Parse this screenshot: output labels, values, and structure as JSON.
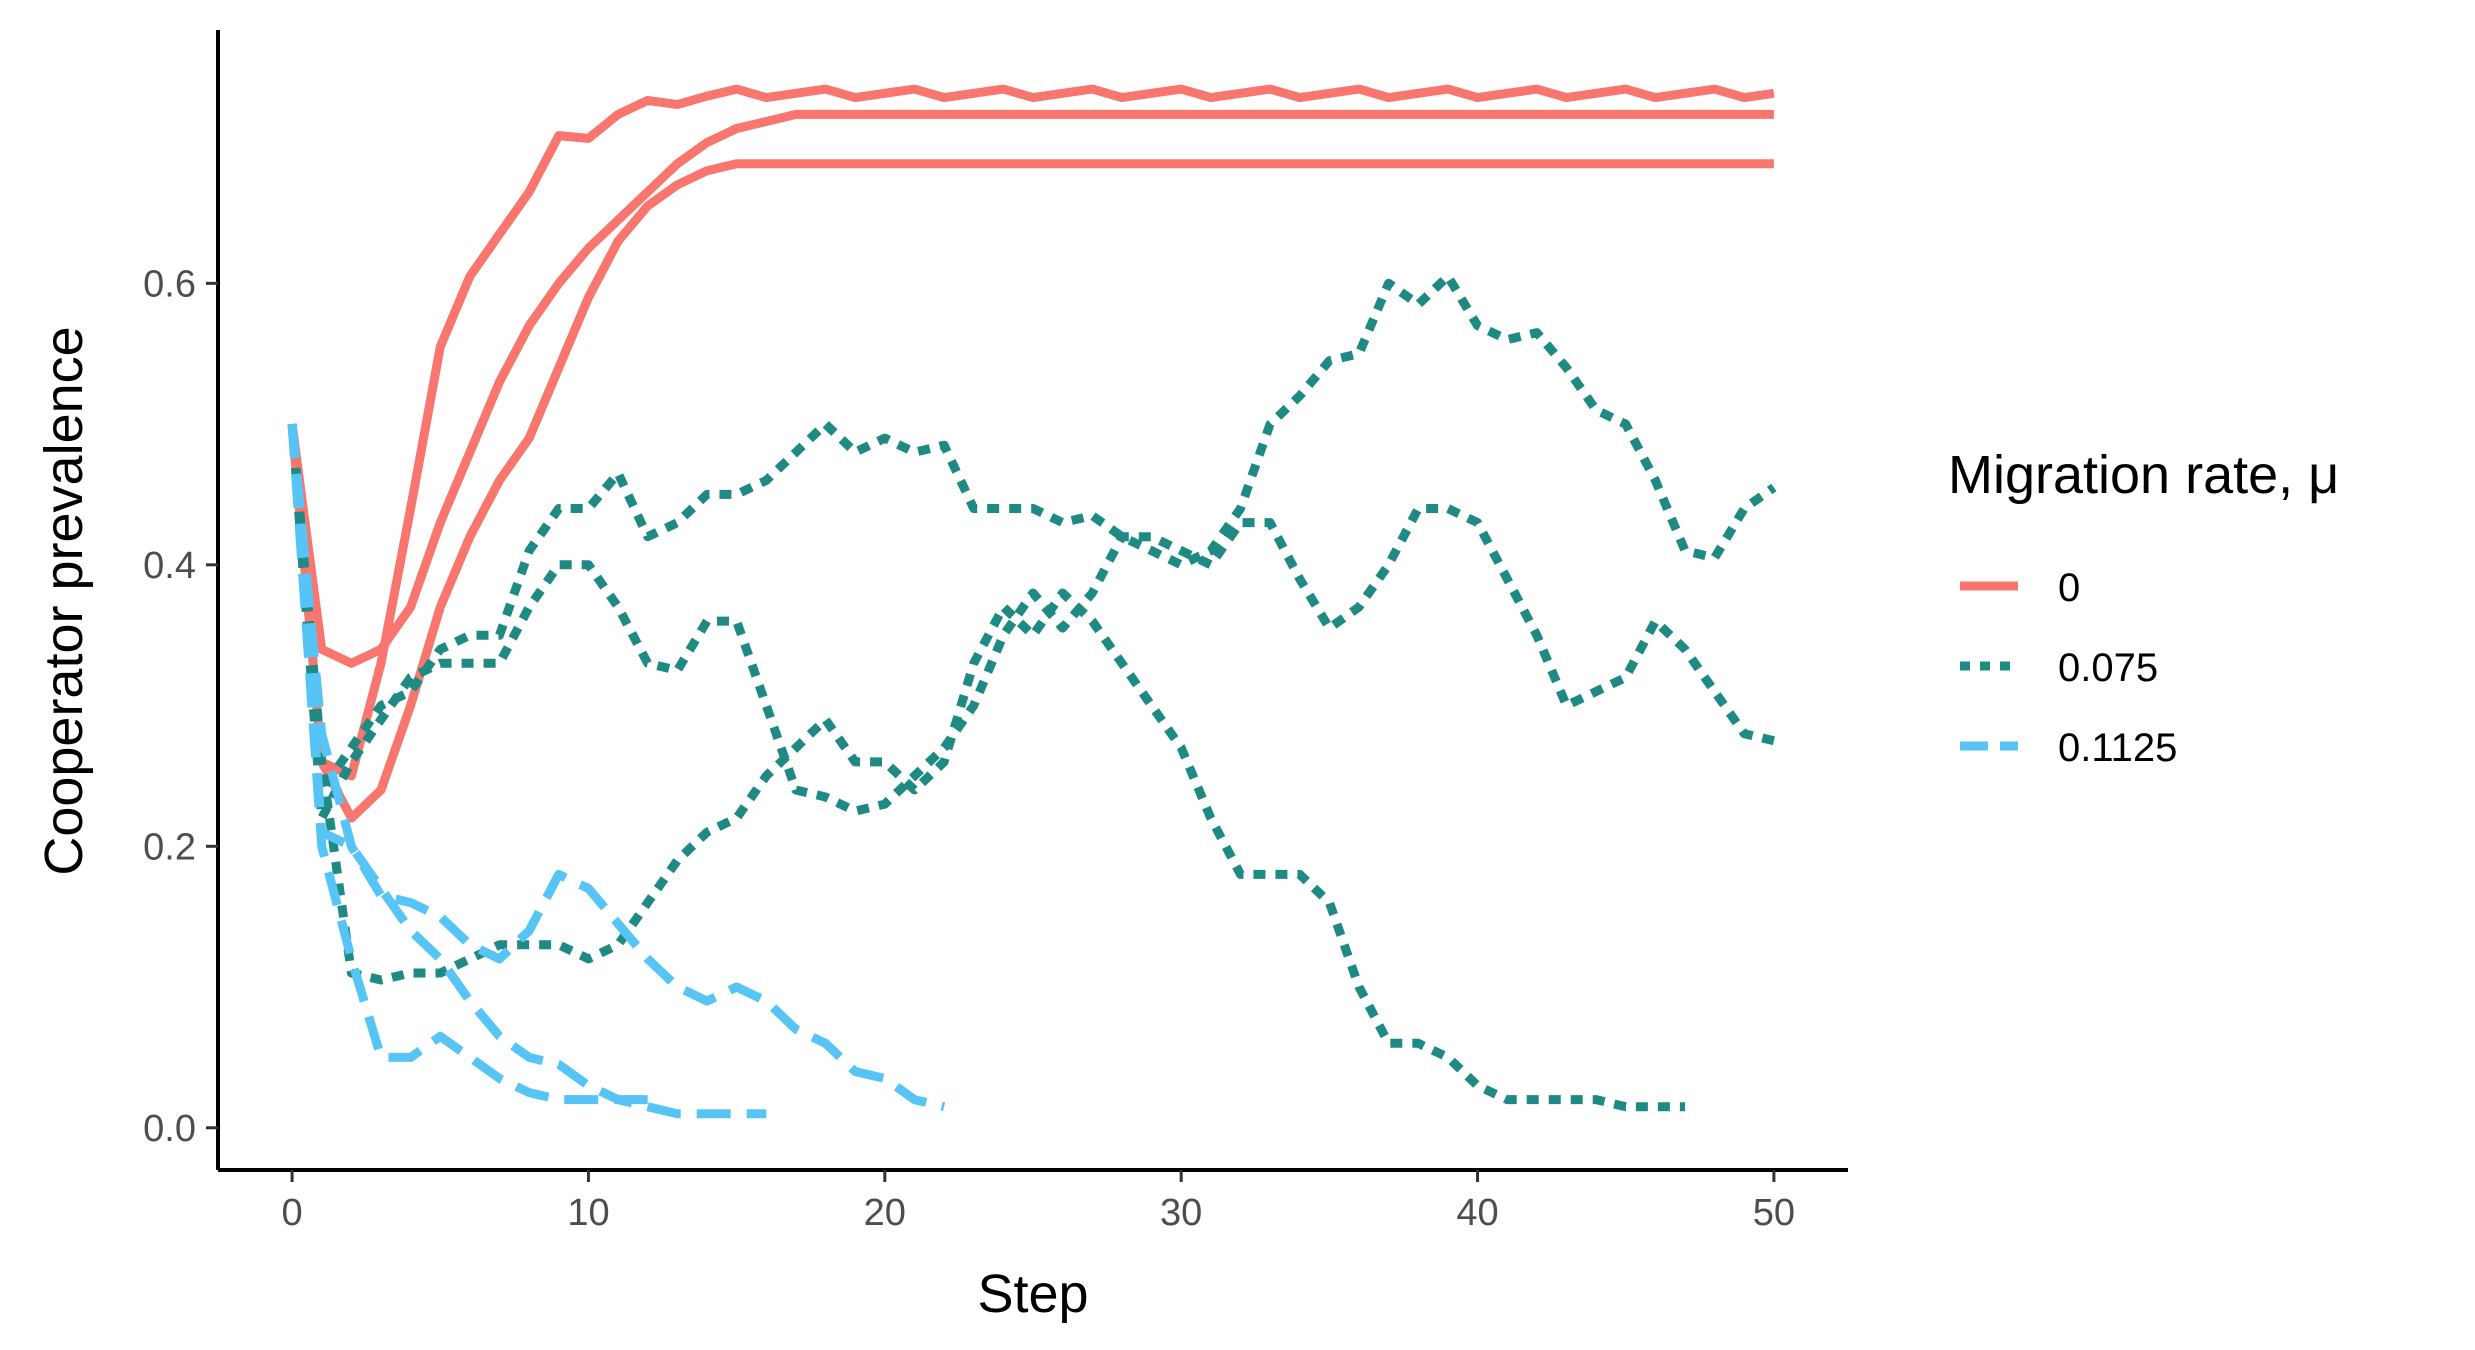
{
  "chart_data": {
    "type": "line",
    "title": "",
    "xlabel": "Step",
    "ylabel": "Cooperator prevalence",
    "xlim": [
      -2.5,
      52.5
    ],
    "ylim": [
      -0.03,
      0.78
    ],
    "x_ticks": [
      0,
      10,
      20,
      30,
      40,
      50
    ],
    "y_ticks": [
      0.0,
      0.2,
      0.4,
      0.6
    ],
    "x_tick_labels": [
      "0",
      "10",
      "20",
      "30",
      "40",
      "50"
    ],
    "y_tick_labels": [
      "0.0",
      "0.2",
      "0.4",
      "0.6"
    ],
    "grid": false,
    "legend": {
      "title": "Migration rate, μ",
      "position": "right",
      "entries": [
        {
          "label": "0",
          "color": "#F8766D",
          "dash": "solid"
        },
        {
          "label": "0.075",
          "color": "#1F8A83",
          "dash": "dotted"
        },
        {
          "label": "0.1125",
          "color": "#56C5F5",
          "dash": "dashed"
        }
      ]
    },
    "series": [
      {
        "group": "0",
        "color": "#F8766D",
        "dash": "solid",
        "x": [
          0,
          1,
          2,
          3,
          4,
          5,
          6,
          7,
          8,
          9,
          10,
          11,
          12,
          13,
          14,
          15,
          16,
          17,
          18,
          19,
          20,
          21,
          22,
          23,
          24,
          25,
          26,
          27,
          28,
          29,
          30,
          31,
          32,
          33,
          34,
          35,
          36,
          37,
          38,
          39,
          40,
          41,
          42,
          43,
          44,
          45,
          46,
          47,
          48,
          49,
          50
        ],
        "y": [
          0.5,
          0.34,
          0.33,
          0.34,
          0.37,
          0.43,
          0.48,
          0.53,
          0.57,
          0.6,
          0.625,
          0.645,
          0.665,
          0.685,
          0.7,
          0.71,
          0.715,
          0.72,
          0.72,
          0.72,
          0.72,
          0.72,
          0.72,
          0.72,
          0.72,
          0.72,
          0.72,
          0.72,
          0.72,
          0.72,
          0.72,
          0.72,
          0.72,
          0.72,
          0.72,
          0.72,
          0.72,
          0.72,
          0.72,
          0.72,
          0.72,
          0.72,
          0.72,
          0.72,
          0.72,
          0.72,
          0.72,
          0.72,
          0.72,
          0.72,
          0.72
        ]
      },
      {
        "group": "0",
        "color": "#F8766D",
        "dash": "solid",
        "x": [
          0,
          1,
          2,
          3,
          4,
          5,
          6,
          7,
          8,
          9,
          10,
          11,
          12,
          13,
          14,
          15,
          16,
          17,
          18,
          19,
          20,
          21,
          22,
          23,
          24,
          25,
          26,
          27,
          28,
          29,
          30,
          31,
          32,
          33,
          34,
          35,
          36,
          37,
          38,
          39,
          40,
          41,
          42,
          43,
          44,
          45,
          46,
          47,
          48,
          49,
          50
        ],
        "y": [
          0.5,
          0.26,
          0.22,
          0.24,
          0.3,
          0.37,
          0.42,
          0.46,
          0.49,
          0.54,
          0.59,
          0.63,
          0.655,
          0.67,
          0.68,
          0.685,
          0.685,
          0.685,
          0.685,
          0.685,
          0.685,
          0.685,
          0.685,
          0.685,
          0.685,
          0.685,
          0.685,
          0.685,
          0.685,
          0.685,
          0.685,
          0.685,
          0.685,
          0.685,
          0.685,
          0.685,
          0.685,
          0.685,
          0.685,
          0.685,
          0.685,
          0.685,
          0.685,
          0.685,
          0.685,
          0.685,
          0.685,
          0.685,
          0.685,
          0.685,
          0.685
        ]
      },
      {
        "group": "0",
        "color": "#F8766D",
        "dash": "solid",
        "x": [
          0,
          1,
          2,
          3,
          4,
          5,
          6,
          7,
          8,
          9,
          10,
          11,
          12,
          13,
          14,
          15,
          16,
          17,
          18,
          19,
          20,
          21,
          22,
          23,
          24,
          25,
          26,
          27,
          28,
          29,
          30,
          31,
          32,
          33,
          34,
          35,
          36,
          37,
          38,
          39,
          40,
          41,
          42,
          43,
          44,
          45,
          46,
          47,
          48,
          49,
          50
        ],
        "y": [
          0.5,
          0.26,
          0.25,
          0.33,
          0.44,
          0.555,
          0.605,
          0.635,
          0.665,
          0.705,
          0.703,
          0.72,
          0.73,
          0.727,
          0.733,
          0.738,
          0.732,
          0.735,
          0.738,
          0.732,
          0.735,
          0.738,
          0.732,
          0.735,
          0.738,
          0.732,
          0.735,
          0.738,
          0.732,
          0.735,
          0.738,
          0.732,
          0.735,
          0.738,
          0.732,
          0.735,
          0.738,
          0.732,
          0.735,
          0.738,
          0.732,
          0.735,
          0.738,
          0.732,
          0.735,
          0.738,
          0.732,
          0.735,
          0.738,
          0.732,
          0.735
        ]
      },
      {
        "group": "0.075",
        "color": "#1F8A83",
        "dash": "dotted",
        "x": [
          0,
          1,
          2,
          3,
          4,
          5,
          6,
          7,
          8,
          9,
          10,
          11,
          12,
          13,
          14,
          15,
          16,
          17,
          18,
          19,
          20,
          21,
          22,
          23,
          24,
          25,
          26,
          27,
          28,
          29,
          30,
          31,
          32,
          33,
          34,
          35,
          36,
          37,
          38,
          39,
          40,
          41,
          42,
          43,
          44,
          45,
          46,
          47,
          48,
          49,
          50
        ],
        "y": [
          0.5,
          0.24,
          0.27,
          0.3,
          0.31,
          0.34,
          0.35,
          0.35,
          0.41,
          0.44,
          0.44,
          0.465,
          0.42,
          0.43,
          0.45,
          0.45,
          0.46,
          0.48,
          0.5,
          0.48,
          0.49,
          0.48,
          0.485,
          0.44,
          0.44,
          0.44,
          0.43,
          0.435,
          0.42,
          0.41,
          0.4,
          0.41,
          0.44,
          0.5,
          0.52,
          0.545,
          0.55,
          0.6,
          0.585,
          0.605,
          0.57,
          0.56,
          0.565,
          0.54,
          0.51,
          0.5,
          0.46,
          0.41,
          0.405,
          0.44,
          0.455
        ]
      },
      {
        "group": "0.075",
        "color": "#1F8A83",
        "dash": "dotted",
        "x": [
          0,
          1,
          2,
          3,
          4,
          5,
          6,
          7,
          8,
          9,
          10,
          11,
          12,
          13,
          14,
          15,
          16,
          17,
          18,
          19,
          20,
          21,
          22,
          23,
          24,
          25,
          26,
          27,
          28,
          29,
          30,
          31,
          32,
          33,
          34,
          35,
          36,
          37,
          38,
          39,
          40,
          41,
          42,
          43,
          44,
          45,
          46,
          47,
          48,
          49,
          50
        ],
        "y": [
          0.5,
          0.22,
          0.26,
          0.29,
          0.32,
          0.33,
          0.33,
          0.33,
          0.37,
          0.4,
          0.4,
          0.37,
          0.33,
          0.325,
          0.36,
          0.36,
          0.3,
          0.24,
          0.235,
          0.225,
          0.23,
          0.25,
          0.27,
          0.3,
          0.35,
          0.38,
          0.355,
          0.38,
          0.42,
          0.42,
          0.41,
          0.4,
          0.43,
          0.43,
          0.39,
          0.355,
          0.37,
          0.4,
          0.44,
          0.44,
          0.43,
          0.39,
          0.35,
          0.3,
          0.31,
          0.32,
          0.36,
          0.34,
          0.31,
          0.28,
          0.275
        ]
      },
      {
        "group": "0.075",
        "color": "#1F8A83",
        "dash": "dotted",
        "x": [
          0,
          1,
          2,
          3,
          4,
          5,
          6,
          7,
          8,
          9,
          10,
          11,
          12,
          13,
          14,
          15,
          16,
          17,
          18,
          19,
          20,
          21,
          22,
          23,
          24,
          25,
          26,
          27,
          28,
          29,
          30,
          31,
          32,
          33,
          34,
          35,
          36,
          37,
          38,
          39,
          40,
          41,
          42,
          43,
          44,
          45,
          46,
          47
        ],
        "y": [
          0.5,
          0.26,
          0.11,
          0.105,
          0.11,
          0.11,
          0.12,
          0.13,
          0.13,
          0.13,
          0.12,
          0.13,
          0.16,
          0.19,
          0.21,
          0.22,
          0.25,
          0.27,
          0.29,
          0.26,
          0.26,
          0.24,
          0.26,
          0.33,
          0.37,
          0.35,
          0.38,
          0.36,
          0.33,
          0.3,
          0.27,
          0.22,
          0.18,
          0.18,
          0.18,
          0.16,
          0.1,
          0.06,
          0.06,
          0.05,
          0.03,
          0.02,
          0.02,
          0.02,
          0.02,
          0.015,
          0.015,
          0.015
        ]
      },
      {
        "group": "0.1125",
        "color": "#56C5F5",
        "dash": "dashed",
        "x": [
          0,
          1,
          2,
          3,
          4,
          5,
          6,
          7,
          8,
          9,
          10,
          11,
          12,
          13,
          14,
          15,
          16,
          17,
          18,
          19,
          20,
          21,
          22
        ],
        "y": [
          0.5,
          0.28,
          0.2,
          0.165,
          0.16,
          0.15,
          0.13,
          0.12,
          0.14,
          0.18,
          0.17,
          0.145,
          0.12,
          0.1,
          0.09,
          0.1,
          0.09,
          0.07,
          0.06,
          0.04,
          0.035,
          0.02,
          0.015
        ]
      },
      {
        "group": "0.1125",
        "color": "#56C5F5",
        "dash": "dashed",
        "x": [
          0,
          1,
          2,
          3,
          4,
          5,
          6,
          7,
          8,
          9,
          10,
          11,
          12,
          13,
          14,
          15,
          16
        ],
        "y": [
          0.5,
          0.21,
          0.2,
          0.17,
          0.14,
          0.12,
          0.09,
          0.065,
          0.05,
          0.045,
          0.03,
          0.02,
          0.015,
          0.01,
          0.01,
          0.01,
          0.01
        ]
      },
      {
        "group": "0.1125",
        "color": "#56C5F5",
        "dash": "dashed",
        "x": [
          0,
          1,
          2,
          3,
          4,
          5,
          6,
          7,
          8,
          9,
          10,
          11,
          12
        ],
        "y": [
          0.5,
          0.2,
          0.12,
          0.05,
          0.05,
          0.065,
          0.05,
          0.035,
          0.025,
          0.02,
          0.02,
          0.02,
          0.02
        ]
      }
    ]
  }
}
